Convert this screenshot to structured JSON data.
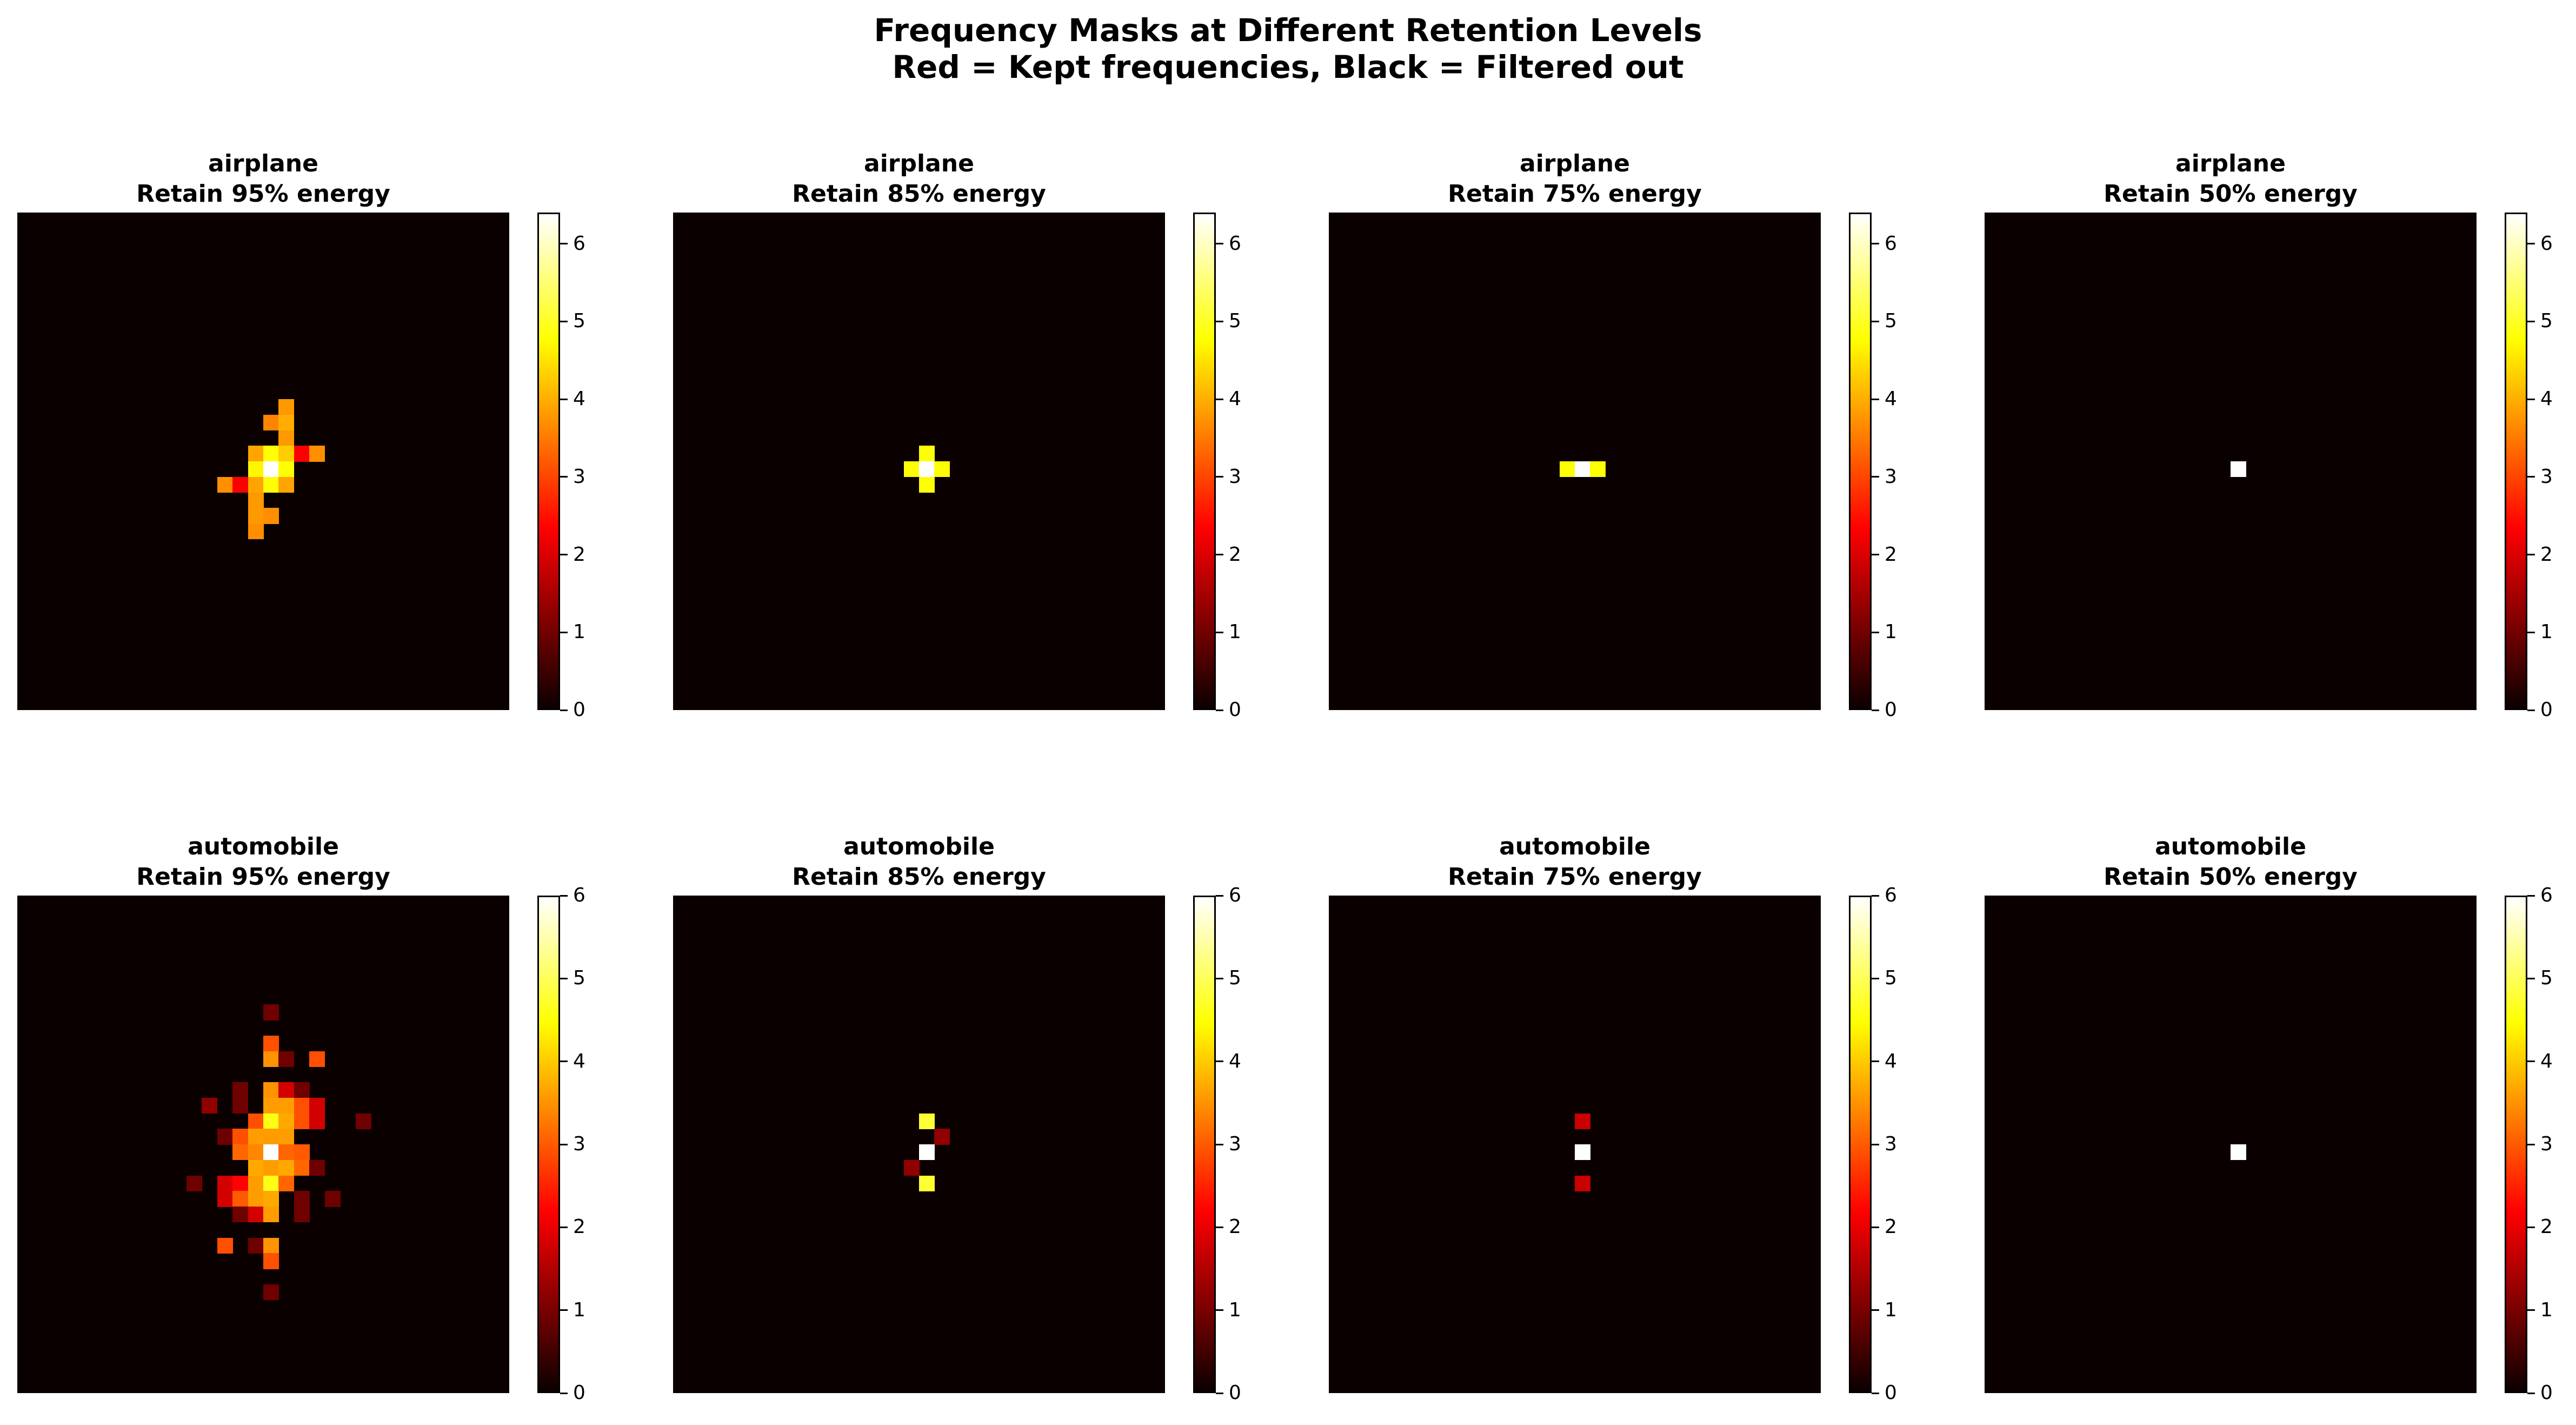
{
  "figure": {
    "suptitle_line1": "Frequency Masks at Different Retention Levels",
    "suptitle_line2": "Red = Kept frequencies, Black = Filtered out",
    "background_color": "#ffffff",
    "mask_background_color": "#0b0000",
    "colormap": "hot"
  },
  "chart_data": {
    "type": "heatmap",
    "grid_size": 32,
    "colormap": "hot",
    "colormap_stops": [
      {
        "t": 0.0,
        "color": "#0b0000"
      },
      {
        "t": 0.365,
        "color": "#ff0000"
      },
      {
        "t": 0.746,
        "color": "#ffff00"
      },
      {
        "t": 1.0,
        "color": "#ffffff"
      }
    ],
    "panels": [
      {
        "id": "airplane-95",
        "title_line1": "airplane",
        "title_line2": "Retain 95% energy",
        "class_name": "airplane",
        "retention": "95%",
        "vmax": 6.4,
        "colorbar_ticks": [
          0,
          1,
          2,
          3,
          4,
          5,
          6
        ],
        "cells": [
          [
            12,
            17,
            3.8
          ],
          [
            13,
            16,
            3.6
          ],
          [
            13,
            17,
            4.0
          ],
          [
            14,
            17,
            3.8
          ],
          [
            15,
            15,
            3.9
          ],
          [
            15,
            16,
            4.8
          ],
          [
            15,
            17,
            4.3
          ],
          [
            15,
            18,
            2.3
          ],
          [
            15,
            19,
            3.7
          ],
          [
            16,
            15,
            4.7
          ],
          [
            16,
            16,
            6.4
          ],
          [
            16,
            17,
            4.8
          ],
          [
            17,
            13,
            3.7
          ],
          [
            17,
            14,
            2.3
          ],
          [
            17,
            15,
            3.9
          ],
          [
            17,
            16,
            4.8
          ],
          [
            17,
            17,
            3.9
          ],
          [
            18,
            15,
            3.8
          ],
          [
            19,
            15,
            3.8
          ],
          [
            19,
            16,
            3.7
          ],
          [
            20,
            15,
            3.7
          ]
        ]
      },
      {
        "id": "airplane-85",
        "title_line1": "airplane",
        "title_line2": "Retain 85% energy",
        "class_name": "airplane",
        "retention": "85%",
        "vmax": 6.4,
        "colorbar_ticks": [
          0,
          1,
          2,
          3,
          4,
          5,
          6
        ],
        "cells": [
          [
            15,
            16,
            4.8
          ],
          [
            16,
            15,
            4.8
          ],
          [
            16,
            16,
            6.4
          ],
          [
            16,
            17,
            4.8
          ],
          [
            17,
            16,
            4.8
          ]
        ]
      },
      {
        "id": "airplane-75",
        "title_line1": "airplane",
        "title_line2": "Retain 75% energy",
        "class_name": "airplane",
        "retention": "75%",
        "vmax": 6.4,
        "colorbar_ticks": [
          0,
          1,
          2,
          3,
          4,
          5,
          6
        ],
        "cells": [
          [
            16,
            15,
            4.8
          ],
          [
            16,
            16,
            6.4
          ],
          [
            16,
            17,
            4.8
          ]
        ]
      },
      {
        "id": "airplane-50",
        "title_line1": "airplane",
        "title_line2": "Retain 50% energy",
        "class_name": "airplane",
        "retention": "50%",
        "vmax": 6.4,
        "colorbar_ticks": [
          0,
          1,
          2,
          3,
          4,
          5,
          6
        ],
        "cells": [
          [
            16,
            16,
            6.4
          ]
        ]
      },
      {
        "id": "automobile-95",
        "title_line1": "automobile",
        "title_line2": "Retain 95% energy",
        "class_name": "automobile",
        "retention": "95%",
        "vmax": 6.0,
        "colorbar_ticks": [
          0,
          1,
          2,
          3,
          4,
          5,
          6
        ],
        "cells": [
          [
            7,
            16,
            0.9
          ],
          [
            9,
            16,
            2.9
          ],
          [
            10,
            16,
            3.5
          ],
          [
            10,
            17,
            0.9
          ],
          [
            10,
            19,
            2.9
          ],
          [
            12,
            14,
            0.9
          ],
          [
            12,
            16,
            3.5
          ],
          [
            12,
            17,
            1.8
          ],
          [
            12,
            18,
            0.9
          ],
          [
            13,
            12,
            1.2
          ],
          [
            13,
            14,
            0.9
          ],
          [
            13,
            16,
            3.6
          ],
          [
            13,
            17,
            3.6
          ],
          [
            13,
            18,
            2.9
          ],
          [
            13,
            19,
            1.8
          ],
          [
            14,
            15,
            2.9
          ],
          [
            14,
            16,
            4.6
          ],
          [
            14,
            17,
            3.7
          ],
          [
            14,
            18,
            2.9
          ],
          [
            14,
            19,
            1.8
          ],
          [
            14,
            22,
            0.9
          ],
          [
            15,
            13,
            0.9
          ],
          [
            15,
            14,
            2.9
          ],
          [
            15,
            15,
            3.6
          ],
          [
            15,
            16,
            3.6
          ],
          [
            15,
            17,
            3.6
          ],
          [
            16,
            14,
            3.1
          ],
          [
            16,
            15,
            3.4
          ],
          [
            16,
            16,
            6.0
          ],
          [
            16,
            17,
            3.1
          ],
          [
            16,
            18,
            3.0
          ],
          [
            17,
            15,
            3.7
          ],
          [
            17,
            16,
            3.6
          ],
          [
            17,
            17,
            3.7
          ],
          [
            17,
            18,
            3.1
          ],
          [
            17,
            19,
            0.9
          ],
          [
            18,
            11,
            0.9
          ],
          [
            18,
            13,
            1.8
          ],
          [
            18,
            14,
            2.2
          ],
          [
            18,
            15,
            3.6
          ],
          [
            18,
            16,
            4.6
          ],
          [
            18,
            17,
            3.1
          ],
          [
            19,
            13,
            1.8
          ],
          [
            19,
            14,
            3.0
          ],
          [
            19,
            15,
            3.6
          ],
          [
            19,
            16,
            3.7
          ],
          [
            19,
            18,
            0.9
          ],
          [
            19,
            20,
            0.9
          ],
          [
            20,
            14,
            0.9
          ],
          [
            20,
            15,
            1.8
          ],
          [
            20,
            16,
            3.6
          ],
          [
            20,
            18,
            0.9
          ],
          [
            22,
            13,
            2.9
          ],
          [
            22,
            15,
            0.9
          ],
          [
            22,
            16,
            3.5
          ],
          [
            23,
            16,
            2.9
          ],
          [
            25,
            16,
            0.9
          ]
        ]
      },
      {
        "id": "automobile-85",
        "title_line1": "automobile",
        "title_line2": "Retain 85% energy",
        "class_name": "automobile",
        "retention": "85%",
        "vmax": 6.0,
        "colorbar_ticks": [
          0,
          1,
          2,
          3,
          4,
          5,
          6
        ],
        "cells": [
          [
            14,
            16,
            4.8
          ],
          [
            15,
            17,
            1.2
          ],
          [
            16,
            16,
            6.0
          ],
          [
            17,
            15,
            1.2
          ],
          [
            18,
            16,
            4.8
          ]
        ]
      },
      {
        "id": "automobile-75",
        "title_line1": "automobile",
        "title_line2": "Retain 75% energy",
        "class_name": "automobile",
        "retention": "75%",
        "vmax": 6.0,
        "colorbar_ticks": [
          0,
          1,
          2,
          3,
          4,
          5,
          6
        ],
        "cells": [
          [
            14,
            16,
            1.7
          ],
          [
            16,
            16,
            6.0
          ],
          [
            18,
            16,
            1.7
          ]
        ]
      },
      {
        "id": "automobile-50",
        "title_line1": "automobile",
        "title_line2": "Retain 50% energy",
        "class_name": "automobile",
        "retention": "50%",
        "vmax": 6.0,
        "colorbar_ticks": [
          0,
          1,
          2,
          3,
          4,
          5,
          6
        ],
        "cells": [
          [
            16,
            16,
            6.0
          ]
        ]
      }
    ]
  }
}
